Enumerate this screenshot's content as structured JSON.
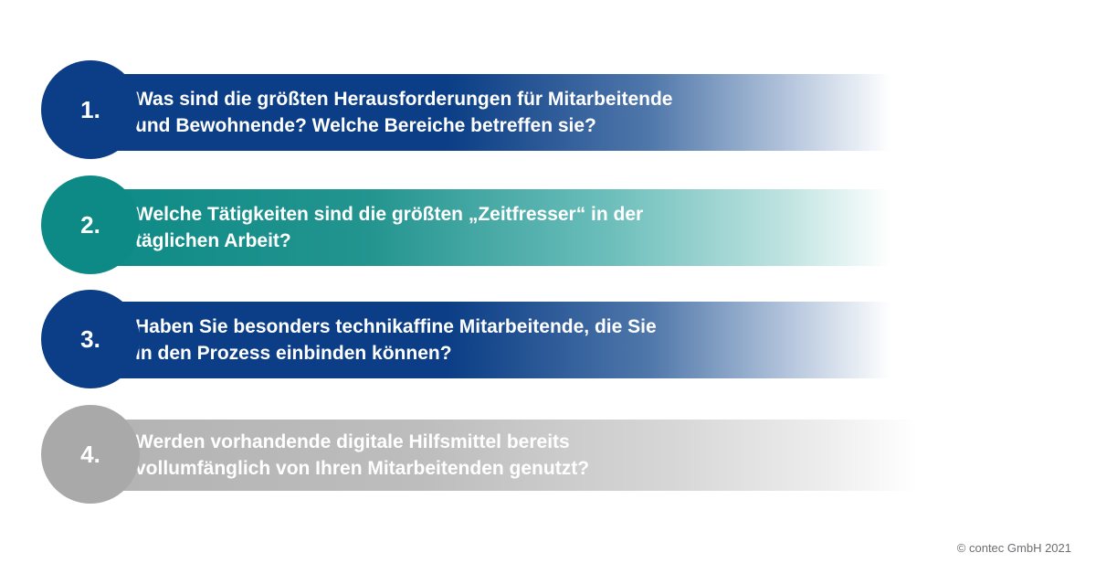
{
  "items": [
    {
      "number": "1.",
      "text": "Was sind die größten Herausforderungen für Mitarbeitende\nund Bewohnende? Welche Bereiche betreffen sie?",
      "color": "#0b3e86"
    },
    {
      "number": "2.",
      "text": " Welche Tätigkeiten sind die größten „Zeitfresser“ in der\ntäglichen Arbeit?",
      "color": "#0d8a86"
    },
    {
      "number": "3.",
      "text": "Haben Sie besonders technikaffine Mitarbeitende, die Sie\nin den Prozess einbinden können?",
      "color": "#0b3e86"
    },
    {
      "number": "4.",
      "text": " Werden vorhandende digitale Hilfsmittel bereits\nvollumfänglich von Ihren Mitarbeitenden genutzt?",
      "color": "#a9a9a9"
    }
  ],
  "footer": {
    "copyright": "© contec GmbH 2021"
  }
}
